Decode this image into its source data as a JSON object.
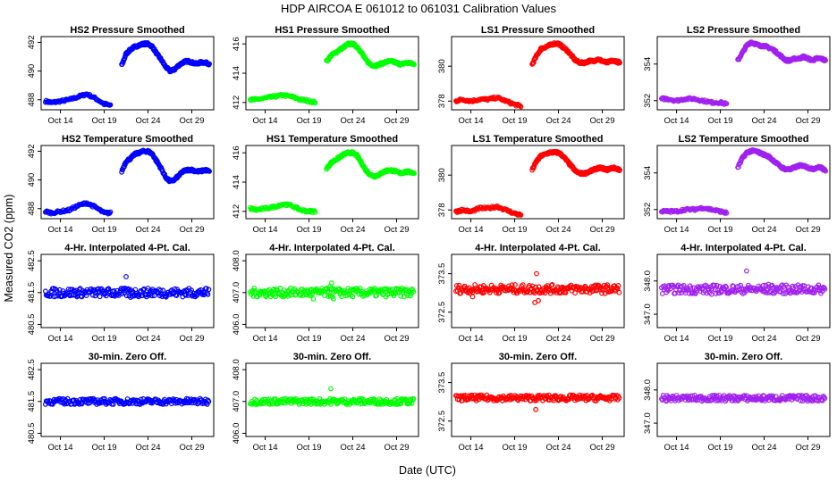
{
  "figure": {
    "title": "HDP    AIRCOA E    061012 to 061031    Calibration Values",
    "xlabel": "Date (UTC)",
    "ylabel": "Measured CO2 (ppm)"
  },
  "series_colors": {
    "HS2": "#0000ff",
    "HS1": "#00ff00",
    "LS1": "#ff0000",
    "LS2": "#a020f0"
  },
  "x_ticks": [
    "Oct 14",
    "Oct 19",
    "Oct 24",
    "Oct 29"
  ],
  "x_tick_days": [
    14,
    19,
    24,
    29
  ],
  "x_range_days": [
    11.8,
    31.5
  ],
  "chart_data": [
    {
      "type": "scatter",
      "title": "HS2 Pressure Smoothed",
      "series": "HS2",
      "kind": "smoothed",
      "yticks": [
        "488",
        "490",
        "492"
      ],
      "ylim": [
        487.3,
        492.4
      ],
      "x": [
        12.3,
        13,
        14,
        15,
        16,
        17,
        18,
        19,
        19.8,
        20.5,
        21,
        21.5,
        22,
        22.5,
        23,
        23.5,
        24,
        24.5,
        25,
        25.5,
        26,
        26.5,
        27,
        27.5,
        28,
        28.5,
        29,
        29.5,
        30,
        30.5,
        31
      ],
      "y": [
        487.9,
        487.8,
        487.9,
        488.0,
        488.2,
        488.4,
        488.1,
        487.7,
        487.6,
        null,
        490.4,
        491.2,
        491.5,
        491.7,
        491.8,
        491.9,
        491.9,
        491.7,
        491.2,
        490.8,
        490.3,
        490.0,
        490.1,
        490.4,
        490.6,
        490.7,
        490.6,
        490.5,
        490.6,
        490.6,
        490.5
      ]
    },
    {
      "type": "scatter",
      "title": "HS1 Pressure Smoothed",
      "series": "HS1",
      "kind": "smoothed",
      "yticks": [
        "412",
        "414",
        "416"
      ],
      "ylim": [
        411.5,
        416.5
      ],
      "x": [
        12.3,
        13,
        14,
        15,
        16,
        17,
        18,
        19,
        19.8,
        20.5,
        21,
        21.5,
        22,
        22.5,
        23,
        23.5,
        24,
        24.5,
        25,
        25.5,
        26,
        26.5,
        27,
        27.5,
        28,
        28.5,
        29,
        29.5,
        30,
        30.5,
        31
      ],
      "y": [
        412.2,
        412.2,
        412.3,
        412.4,
        412.5,
        412.4,
        412.2,
        412.1,
        412.0,
        null,
        414.8,
        415.2,
        415.4,
        415.6,
        415.8,
        416.0,
        416.0,
        415.8,
        415.4,
        414.9,
        414.6,
        414.5,
        414.6,
        414.7,
        414.8,
        414.8,
        414.7,
        414.6,
        414.7,
        414.7,
        414.6
      ]
    },
    {
      "type": "scatter",
      "title": "LS1 Pressure Smoothed",
      "series": "LS1",
      "kind": "smoothed",
      "yticks": [
        "378",
        "380"
      ],
      "ylim": [
        377.5,
        381.7
      ],
      "x": [
        12.3,
        13,
        14,
        15,
        16,
        17,
        18,
        19,
        19.8,
        20.5,
        21,
        21.5,
        22,
        22.5,
        23,
        23.5,
        24,
        24.5,
        25,
        25.5,
        26,
        26.5,
        27,
        27.5,
        28,
        28.5,
        29,
        29.5,
        30,
        30.5,
        31
      ],
      "y": [
        378.0,
        378.1,
        378.0,
        378.1,
        378.1,
        378.2,
        378.0,
        377.8,
        377.7,
        null,
        380.1,
        380.6,
        381.0,
        381.1,
        381.2,
        381.3,
        381.3,
        381.1,
        380.9,
        380.6,
        380.3,
        380.2,
        380.2,
        380.3,
        380.3,
        380.4,
        380.3,
        380.2,
        380.3,
        380.3,
        380.2
      ]
    },
    {
      "type": "scatter",
      "title": "LS2 Pressure Smoothed",
      "series": "LS2",
      "kind": "smoothed",
      "yticks": [
        "352",
        "354"
      ],
      "ylim": [
        351.5,
        355.5
      ],
      "x": [
        12.3,
        13,
        14,
        15,
        16,
        17,
        18,
        19,
        19.8,
        20.5,
        21,
        21.5,
        22,
        22.5,
        23,
        23.5,
        24,
        24.5,
        25,
        25.5,
        26,
        26.5,
        27,
        27.5,
        28,
        28.5,
        29,
        29.5,
        30,
        30.5,
        31
      ],
      "y": [
        352.1,
        352.1,
        352.0,
        352.1,
        352.1,
        352.0,
        351.9,
        351.9,
        351.8,
        null,
        354.2,
        354.6,
        355.0,
        355.2,
        355.1,
        355.0,
        355.0,
        354.9,
        354.8,
        354.6,
        354.4,
        354.2,
        354.2,
        354.3,
        354.3,
        354.4,
        354.3,
        354.2,
        354.3,
        354.3,
        354.2
      ]
    },
    {
      "type": "scatter",
      "title": "HS2 Temperature Smoothed",
      "series": "HS2",
      "kind": "smoothed",
      "yticks": [
        "488",
        "490",
        "492"
      ],
      "ylim": [
        487.3,
        492.4
      ],
      "x": [
        12.3,
        13,
        14,
        15,
        16,
        17,
        18,
        19,
        19.8,
        20.5,
        21,
        21.5,
        22,
        22.5,
        23,
        23.5,
        24,
        24.5,
        25,
        25.5,
        26,
        26.5,
        27,
        27.5,
        28,
        28.5,
        29,
        29.5,
        30,
        30.5,
        31
      ],
      "y": [
        487.8,
        487.7,
        487.8,
        487.9,
        488.2,
        488.4,
        488.1,
        487.7,
        487.7,
        null,
        490.6,
        491.3,
        491.5,
        491.8,
        491.9,
        492.0,
        492.0,
        491.8,
        491.3,
        490.8,
        490.2,
        489.9,
        490.0,
        490.3,
        490.6,
        490.7,
        490.7,
        490.6,
        490.6,
        490.7,
        490.6
      ]
    },
    {
      "type": "scatter",
      "title": "HS1 Temperature Smoothed",
      "series": "HS1",
      "kind": "smoothed",
      "yticks": [
        "412",
        "414",
        "416"
      ],
      "ylim": [
        411.5,
        416.5
      ],
      "x": [
        12.3,
        13,
        14,
        15,
        16,
        17,
        18,
        19,
        19.8,
        20.5,
        21,
        21.5,
        22,
        22.5,
        23,
        23.5,
        24,
        24.5,
        25,
        25.5,
        26,
        26.5,
        27,
        27.5,
        28,
        28.5,
        29,
        29.5,
        30,
        30.5,
        31
      ],
      "y": [
        412.2,
        412.1,
        412.2,
        412.3,
        412.5,
        412.4,
        412.1,
        412.0,
        412.0,
        null,
        414.9,
        415.3,
        415.5,
        415.7,
        415.9,
        416.0,
        416.0,
        415.8,
        415.3,
        414.8,
        414.5,
        414.4,
        414.5,
        414.7,
        414.8,
        414.8,
        414.7,
        414.6,
        414.7,
        414.7,
        414.6
      ]
    },
    {
      "type": "scatter",
      "title": "LS1 Temperature Smoothed",
      "series": "LS1",
      "kind": "smoothed",
      "yticks": [
        "378",
        "380"
      ],
      "ylim": [
        377.5,
        381.7
      ],
      "x": [
        12.3,
        13,
        14,
        15,
        16,
        17,
        18,
        19,
        19.8,
        20.5,
        21,
        21.5,
        22,
        22.5,
        23,
        23.5,
        24,
        24.5,
        25,
        25.5,
        26,
        26.5,
        27,
        27.5,
        28,
        28.5,
        29,
        29.5,
        30,
        30.5,
        31
      ],
      "y": [
        377.9,
        378.0,
        377.9,
        378.1,
        378.1,
        378.2,
        378.0,
        377.8,
        377.7,
        null,
        380.3,
        380.8,
        381.1,
        381.2,
        381.3,
        381.3,
        381.3,
        381.1,
        380.8,
        380.5,
        380.2,
        380.1,
        380.1,
        380.2,
        380.3,
        380.4,
        380.4,
        380.3,
        380.4,
        380.4,
        380.3
      ]
    },
    {
      "type": "scatter",
      "title": "LS2 Temperature Smoothed",
      "series": "LS2",
      "kind": "smoothed",
      "yticks": [
        "352",
        "354"
      ],
      "ylim": [
        351.5,
        355.5
      ],
      "x": [
        12.3,
        13,
        14,
        15,
        16,
        17,
        18,
        19,
        19.8,
        20.5,
        21,
        21.5,
        22,
        22.5,
        23,
        23.5,
        24,
        24.5,
        25,
        25.5,
        26,
        26.5,
        27,
        27.5,
        28,
        28.5,
        29,
        29.5,
        30,
        30.5,
        31
      ],
      "y": [
        351.9,
        351.9,
        351.9,
        352.0,
        352.0,
        352.1,
        352.0,
        351.9,
        351.8,
        null,
        354.3,
        354.8,
        355.1,
        355.2,
        355.2,
        355.1,
        355.0,
        354.9,
        354.7,
        354.5,
        354.3,
        354.2,
        354.2,
        354.3,
        354.4,
        354.4,
        354.3,
        354.2,
        354.3,
        354.3,
        354.1
      ]
    },
    {
      "type": "scatter",
      "title": "4-Hr. Interpolated 4-Pt. Cal.",
      "series": "HS2",
      "kind": "flat",
      "yticks": [
        "480.5",
        "481.5",
        "482.5"
      ],
      "ylim": [
        480.4,
        482.7
      ],
      "level": 481.5,
      "spread": 0.06,
      "outliers": [
        [
          21.5,
          482.0
        ],
        [
          22.0,
          481.35
        ],
        [
          24.5,
          481.6
        ],
        [
          16.0,
          481.4
        ]
      ]
    },
    {
      "type": "scatter",
      "title": "4-Hr. Interpolated 4-Pt. Cal.",
      "series": "HS1",
      "kind": "flat",
      "yticks": [
        "406.0",
        "407.0",
        "408.0"
      ],
      "ylim": [
        405.9,
        408.2
      ],
      "level": 407.0,
      "spread": 0.06,
      "outliers": [
        [
          21.6,
          407.3
        ],
        [
          19.5,
          406.8
        ],
        [
          21.8,
          406.8
        ],
        [
          21.4,
          407.2
        ]
      ]
    },
    {
      "type": "scatter",
      "title": "4-Hr. Interpolated 4-Pt. Cal.",
      "series": "LS1",
      "kind": "flat",
      "yticks": [
        "372.5",
        "373.5"
      ],
      "ylim": [
        372.1,
        374.0
      ],
      "level": 373.1,
      "spread": 0.06,
      "outliers": [
        [
          21.5,
          373.5
        ],
        [
          21.7,
          372.8
        ],
        [
          21.3,
          372.75
        ],
        [
          14.2,
          372.9
        ]
      ]
    },
    {
      "type": "scatter",
      "title": "4-Hr. Interpolated 4-Pt. Cal.",
      "series": "LS2",
      "kind": "flat",
      "yticks": [
        "347.0",
        "348.0"
      ],
      "ylim": [
        346.6,
        348.8
      ],
      "level": 347.75,
      "spread": 0.06,
      "outliers": [
        [
          22.0,
          348.3
        ],
        [
          24.5,
          347.9
        ],
        [
          18.0,
          347.6
        ]
      ]
    },
    {
      "type": "scatter",
      "title": "30-min. Zero Off.",
      "series": "HS2",
      "kind": "flat",
      "yticks": [
        "480.5",
        "481.5",
        "482.5"
      ],
      "ylim": [
        480.4,
        482.7
      ],
      "level": 481.5,
      "spread": 0.04,
      "outliers": []
    },
    {
      "type": "scatter",
      "title": "30-min. Zero Off.",
      "series": "HS1",
      "kind": "flat",
      "yticks": [
        "406.0",
        "407.0",
        "408.0"
      ],
      "ylim": [
        405.9,
        408.2
      ],
      "level": 407.0,
      "spread": 0.04,
      "outliers": [
        [
          21.5,
          407.4
        ]
      ]
    },
    {
      "type": "scatter",
      "title": "30-min. Zero Off.",
      "series": "LS1",
      "kind": "flat",
      "yticks": [
        "372.5",
        "373.5"
      ],
      "ylim": [
        372.1,
        374.0
      ],
      "level": 373.1,
      "spread": 0.04,
      "outliers": [
        [
          21.4,
          372.8
        ]
      ]
    },
    {
      "type": "scatter",
      "title": "30-min. Zero Off.",
      "series": "LS2",
      "kind": "flat",
      "yticks": [
        "347.0",
        "348.0"
      ],
      "ylim": [
        346.6,
        348.8
      ],
      "level": 347.75,
      "spread": 0.04,
      "outliers": []
    }
  ]
}
